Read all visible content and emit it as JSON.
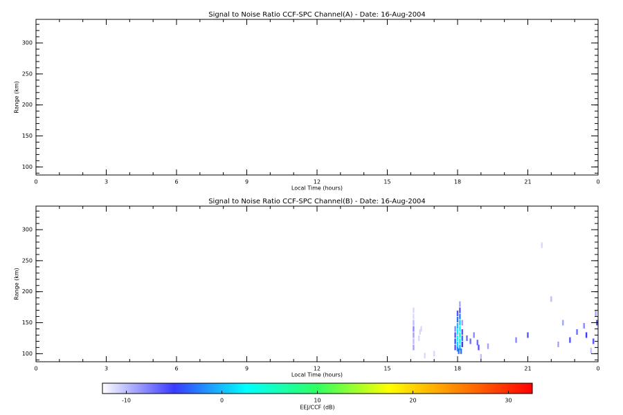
{
  "chart_data": [
    {
      "type": "heatmap",
      "title": "Signal to Noise Ratio CCF-SPC Channel(A) - Date: 16-Aug-2004",
      "xlabel": "Local Time (hours)",
      "ylabel": "Range (km)",
      "xlim": [
        0,
        24
      ],
      "xticks": [
        0,
        3,
        6,
        9,
        12,
        15,
        18,
        21,
        {
          "value": 24,
          "label": "0"
        }
      ],
      "ylim": [
        87,
        338
      ],
      "yticks": [
        100,
        150,
        200,
        250,
        300
      ],
      "xminor_step": 1,
      "yminor_step": 10,
      "x": [],
      "y": [],
      "values": []
    },
    {
      "type": "heatmap",
      "title": "Signal to Noise Ratio CCF-SPC Channel(B) - Date: 16-Aug-2004",
      "xlabel": "Local Time (hours)",
      "ylabel": "Range (km)",
      "xlim": [
        0,
        24
      ],
      "xticks": [
        0,
        3,
        6,
        9,
        12,
        15,
        18,
        21,
        {
          "value": 24,
          "label": "0"
        }
      ],
      "ylim": [
        87,
        338
      ],
      "yticks": [
        100,
        150,
        200,
        250,
        300
      ],
      "xminor_step": 1,
      "yminor_step": 10,
      "x": [
        16.12,
        16.12,
        16.12,
        16.12,
        16.12,
        16.12,
        16.12,
        16.35,
        16.4,
        16.45,
        17.9,
        17.9,
        17.9,
        17.9,
        18.0,
        18.0,
        18.0,
        18.0,
        18.0,
        18.0,
        18.0,
        18.1,
        18.1,
        18.1,
        18.1,
        18.1,
        18.1,
        18.1,
        18.1,
        18.2,
        18.2,
        18.2,
        18.2,
        18.05,
        18.15,
        18.4,
        18.55,
        18.7,
        18.85,
        18.9,
        19.3,
        20.5,
        21.0,
        21.6,
        22.0,
        22.5,
        22.8,
        23.1,
        23.5,
        23.8,
        23.9,
        23.95,
        23.4,
        22.3,
        23.7,
        17.0,
        16.6,
        19.0
      ],
      "y": [
        110,
        120,
        130,
        140,
        150,
        160,
        170,
        125,
        135,
        140,
        110,
        120,
        130,
        140,
        108,
        115,
        125,
        135,
        145,
        155,
        165,
        110,
        120,
        130,
        140,
        150,
        160,
        170,
        180,
        115,
        125,
        135,
        150,
        104,
        104,
        125,
        120,
        130,
        118,
        110,
        112,
        122,
        130,
        275,
        188,
        150,
        122,
        135,
        130,
        120,
        165,
        150,
        145,
        115,
        105,
        100,
        97,
        95
      ],
      "values": [
        -9,
        -10,
        -9,
        -8,
        -10,
        -11,
        -11,
        -11,
        -11,
        -11,
        -6,
        -4,
        -6,
        -8,
        -2,
        1,
        3,
        2,
        0,
        -3,
        -6,
        0,
        4,
        5,
        3,
        1,
        -2,
        -6,
        -9,
        -5,
        -3,
        -6,
        -9,
        -3,
        -3,
        -7,
        -7,
        -8,
        -7,
        -6,
        -9,
        -8,
        -6,
        -11,
        -10,
        -9,
        -6,
        -7,
        -5,
        -6,
        -9,
        -6,
        -8,
        -9,
        -10,
        -11,
        -11,
        -10
      ],
      "colorbar": {
        "label": "EEJ/CCF (dB)",
        "lim": [
          -12.5,
          32.5
        ],
        "ticks": [
          -10,
          0,
          10,
          20,
          30
        ]
      },
      "colormap": [
        "#ffffff",
        "#3a3aff",
        "#00ffff",
        "#30ff60",
        "#ffff00",
        "#ff8000",
        "#ff0000"
      ]
    }
  ]
}
